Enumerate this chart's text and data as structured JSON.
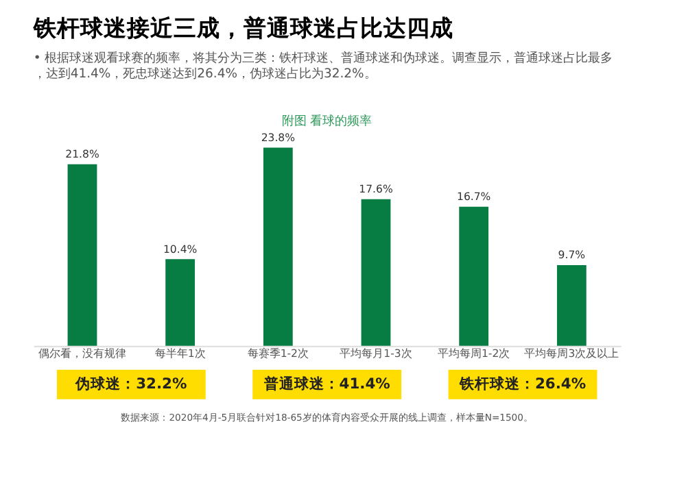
{
  "chart_data": {
    "type": "bar",
    "title": "铁杆球迷接近三成，普通球迷占比达四成",
    "subtitle": "• 根据球迷观看球赛的频率，将其分为三类：铁杆球迷、普通球迷和伪球迷。调查显示，普通球迷占比最多，达到41.4%，死忠球迷达到26.4%，伪球迷占比为32.2%。",
    "categories": [
      "偶尔看，没有规律",
      "每半年1次",
      "每赛季1-2次",
      "平均每月1-3次",
      "平均每周1-2次",
      "平均每周3次及以上"
    ],
    "values": [
      21.8,
      10.4,
      23.8,
      17.6,
      16.7,
      9.7
    ],
    "value_labels": [
      "21.8%",
      "10.4%",
      "23.8%",
      "17.6%",
      "16.7%",
      "9.7%"
    ],
    "color": "#077c43",
    "annotations": [
      "附图  看球的频率",
      "伪球迷：32.2%",
      "普通球迷：41.4%",
      "铁杆球迷：26.4%",
      "数据来源：2020年4月-5月联合针对18-65岁的体育内容受众开展的线上调查，样本量N=1500。"
    ]
  }
}
